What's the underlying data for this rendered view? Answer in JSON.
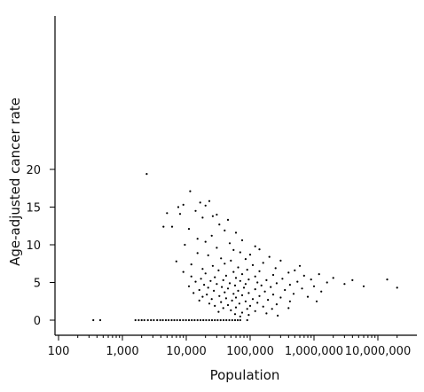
{
  "chart_data": {
    "type": "scatter",
    "xlabel": "Population",
    "ylabel": "Age-adjusted cancer rate",
    "x_scale": "log",
    "xlim": [
      100,
      20000000
    ],
    "ylim": [
      -0.5,
      20
    ],
    "x_ticks": [
      100,
      1000,
      10000,
      100000,
      1000000,
      10000000
    ],
    "x_tick_labels": [
      "100",
      "1,000",
      "10,000",
      "100,000",
      "1,000,000",
      "10,000,000"
    ],
    "y_ticks": [
      0,
      5,
      10,
      15,
      20
    ],
    "y_tick_labels": [
      "0",
      "5",
      "10",
      "15",
      "20"
    ],
    "grid": false,
    "point_color": "#000000",
    "points": [
      [
        2400,
        19.4
      ],
      [
        11500,
        17.1
      ],
      [
        9000,
        15.3
      ],
      [
        7500,
        15.0
      ],
      [
        16500,
        15.6
      ],
      [
        20000,
        15.2
      ],
      [
        23000,
        15.8
      ],
      [
        5000,
        14.2
      ],
      [
        8000,
        14.1
      ],
      [
        14000,
        14.5
      ],
      [
        30000,
        14.0
      ],
      [
        18000,
        13.6
      ],
      [
        26000,
        13.8
      ],
      [
        45000,
        13.3
      ],
      [
        6000,
        12.4
      ],
      [
        4400,
        12.4
      ],
      [
        11000,
        12.1
      ],
      [
        33000,
        12.7
      ],
      [
        40000,
        11.9
      ],
      [
        60000,
        11.6
      ],
      [
        25000,
        11.2
      ],
      [
        15000,
        10.8
      ],
      [
        75000,
        10.6
      ],
      [
        20000,
        10.4
      ],
      [
        48000,
        10.2
      ],
      [
        9500,
        10.0
      ],
      [
        120000,
        9.8
      ],
      [
        30000,
        9.6
      ],
      [
        140000,
        9.4
      ],
      [
        55000,
        9.3
      ],
      [
        70000,
        9.0
      ],
      [
        15000,
        8.9
      ],
      [
        100000,
        8.7
      ],
      [
        22000,
        8.6
      ],
      [
        200000,
        8.4
      ],
      [
        35000,
        8.2
      ],
      [
        85000,
        8.1
      ],
      [
        50000,
        7.9
      ],
      [
        7000,
        7.8
      ],
      [
        300000,
        7.9
      ],
      [
        160000,
        7.6
      ],
      [
        40000,
        7.5
      ],
      [
        12000,
        7.4
      ],
      [
        110000,
        7.3
      ],
      [
        26000,
        7.2
      ],
      [
        600000,
        7.2
      ],
      [
        65000,
        7.0
      ],
      [
        250000,
        6.9
      ],
      [
        18000,
        6.8
      ],
      [
        90000,
        6.7
      ],
      [
        500000,
        6.6
      ],
      [
        32000,
        6.6
      ],
      [
        140000,
        6.5
      ],
      [
        9000,
        6.4
      ],
      [
        55000,
        6.4
      ],
      [
        400000,
        6.3
      ],
      [
        20000,
        6.2
      ],
      [
        1200000,
        6.1
      ],
      [
        75000,
        6.1
      ],
      [
        230000,
        6.0
      ],
      [
        42000,
        5.9
      ],
      [
        700000,
        5.9
      ],
      [
        12000,
        5.8
      ],
      [
        120000,
        5.8
      ],
      [
        28000,
        5.7
      ],
      [
        2000000,
        5.6
      ],
      [
        60000,
        5.6
      ],
      [
        320000,
        5.5
      ],
      [
        17000,
        5.5
      ],
      [
        95000,
        5.4
      ],
      [
        900000,
        5.4
      ],
      [
        38000,
        5.3
      ],
      [
        180000,
        5.3
      ],
      [
        4000000,
        5.3
      ],
      [
        24000,
        5.2
      ],
      [
        70000,
        5.2
      ],
      [
        550000,
        5.1
      ],
      [
        14000,
        5.1
      ],
      [
        130000,
        5.0
      ],
      [
        1600000,
        5.0
      ],
      [
        48000,
        4.9
      ],
      [
        260000,
        4.9
      ],
      [
        30000,
        4.8
      ],
      [
        85000,
        4.8
      ],
      [
        3000000,
        4.8
      ],
      [
        19000,
        4.7
      ],
      [
        420000,
        4.7
      ],
      [
        58000,
        4.6
      ],
      [
        150000,
        4.6
      ],
      [
        11000,
        4.5
      ],
      [
        1000000,
        4.5
      ],
      [
        36000,
        4.4
      ],
      [
        210000,
        4.4
      ],
      [
        80000,
        4.3
      ],
      [
        22000,
        4.3
      ],
      [
        6000000,
        4.5
      ],
      [
        14000000,
        5.4
      ],
      [
        20000000,
        4.3
      ],
      [
        650000,
        4.2
      ],
      [
        45000,
        4.2
      ],
      [
        120000,
        4.1
      ],
      [
        16000,
        4.0
      ],
      [
        350000,
        4.0
      ],
      [
        65000,
        3.9
      ],
      [
        27000,
        3.9
      ],
      [
        170000,
        3.8
      ],
      [
        1300000,
        3.8
      ],
      [
        40000,
        3.7
      ],
      [
        95000,
        3.6
      ],
      [
        13000,
        3.6
      ],
      [
        480000,
        3.5
      ],
      [
        55000,
        3.5
      ],
      [
        230000,
        3.4
      ],
      [
        21000,
        3.4
      ],
      [
        75000,
        3.3
      ],
      [
        33000,
        3.2
      ],
      [
        140000,
        3.2
      ],
      [
        800000,
        3.1
      ],
      [
        18000,
        3.1
      ],
      [
        60000,
        3.0
      ],
      [
        300000,
        3.0
      ],
      [
        42000,
        2.9
      ],
      [
        110000,
        2.8
      ],
      [
        25000,
        2.8
      ],
      [
        190000,
        2.7
      ],
      [
        52000,
        2.6
      ],
      [
        16000,
        2.6
      ],
      [
        420000,
        2.5
      ],
      [
        85000,
        2.5
      ],
      [
        35000,
        2.4
      ],
      [
        1100000,
        2.5
      ],
      [
        130000,
        2.3
      ],
      [
        23000,
        2.2
      ],
      [
        68000,
        2.2
      ],
      [
        260000,
        2.1
      ],
      [
        45000,
        2.0
      ],
      [
        100000,
        1.9
      ],
      [
        28000,
        1.9
      ],
      [
        160000,
        1.8
      ],
      [
        60000,
        1.7
      ],
      [
        38000,
        1.6
      ],
      [
        90000,
        1.5
      ],
      [
        220000,
        1.5
      ],
      [
        50000,
        1.3
      ],
      [
        120000,
        1.2
      ],
      [
        32000,
        1.1
      ],
      [
        75000,
        1.0
      ],
      [
        180000,
        0.9
      ],
      [
        58000,
        0.8
      ],
      [
        95000,
        0.7
      ],
      [
        70000,
        0.5
      ],
      [
        400000,
        1.6
      ],
      [
        270000,
        0.6
      ],
      [
        350,
        0
      ],
      [
        450,
        0
      ],
      [
        1600,
        0
      ],
      [
        1800,
        0
      ],
      [
        2000,
        0
      ],
      [
        2200,
        0
      ],
      [
        2500,
        0
      ],
      [
        2800,
        0
      ],
      [
        3100,
        0
      ],
      [
        3500,
        0
      ],
      [
        3900,
        0
      ],
      [
        4300,
        0
      ],
      [
        4800,
        0
      ],
      [
        5300,
        0
      ],
      [
        5900,
        0
      ],
      [
        6500,
        0
      ],
      [
        7200,
        0
      ],
      [
        8000,
        0
      ],
      [
        8900,
        0
      ],
      [
        9900,
        0
      ],
      [
        11000,
        0
      ],
      [
        12200,
        0
      ],
      [
        13500,
        0
      ],
      [
        15000,
        0
      ],
      [
        16700,
        0
      ],
      [
        18500,
        0
      ],
      [
        20500,
        0
      ],
      [
        22800,
        0
      ],
      [
        25300,
        0
      ],
      [
        28000,
        0
      ],
      [
        31000,
        0
      ],
      [
        34500,
        0
      ],
      [
        38300,
        0
      ],
      [
        42500,
        0
      ],
      [
        47200,
        0
      ],
      [
        52400,
        0
      ],
      [
        58000,
        0
      ],
      [
        64000,
        0
      ],
      [
        70000,
        0
      ],
      [
        90000,
        0
      ]
    ]
  }
}
